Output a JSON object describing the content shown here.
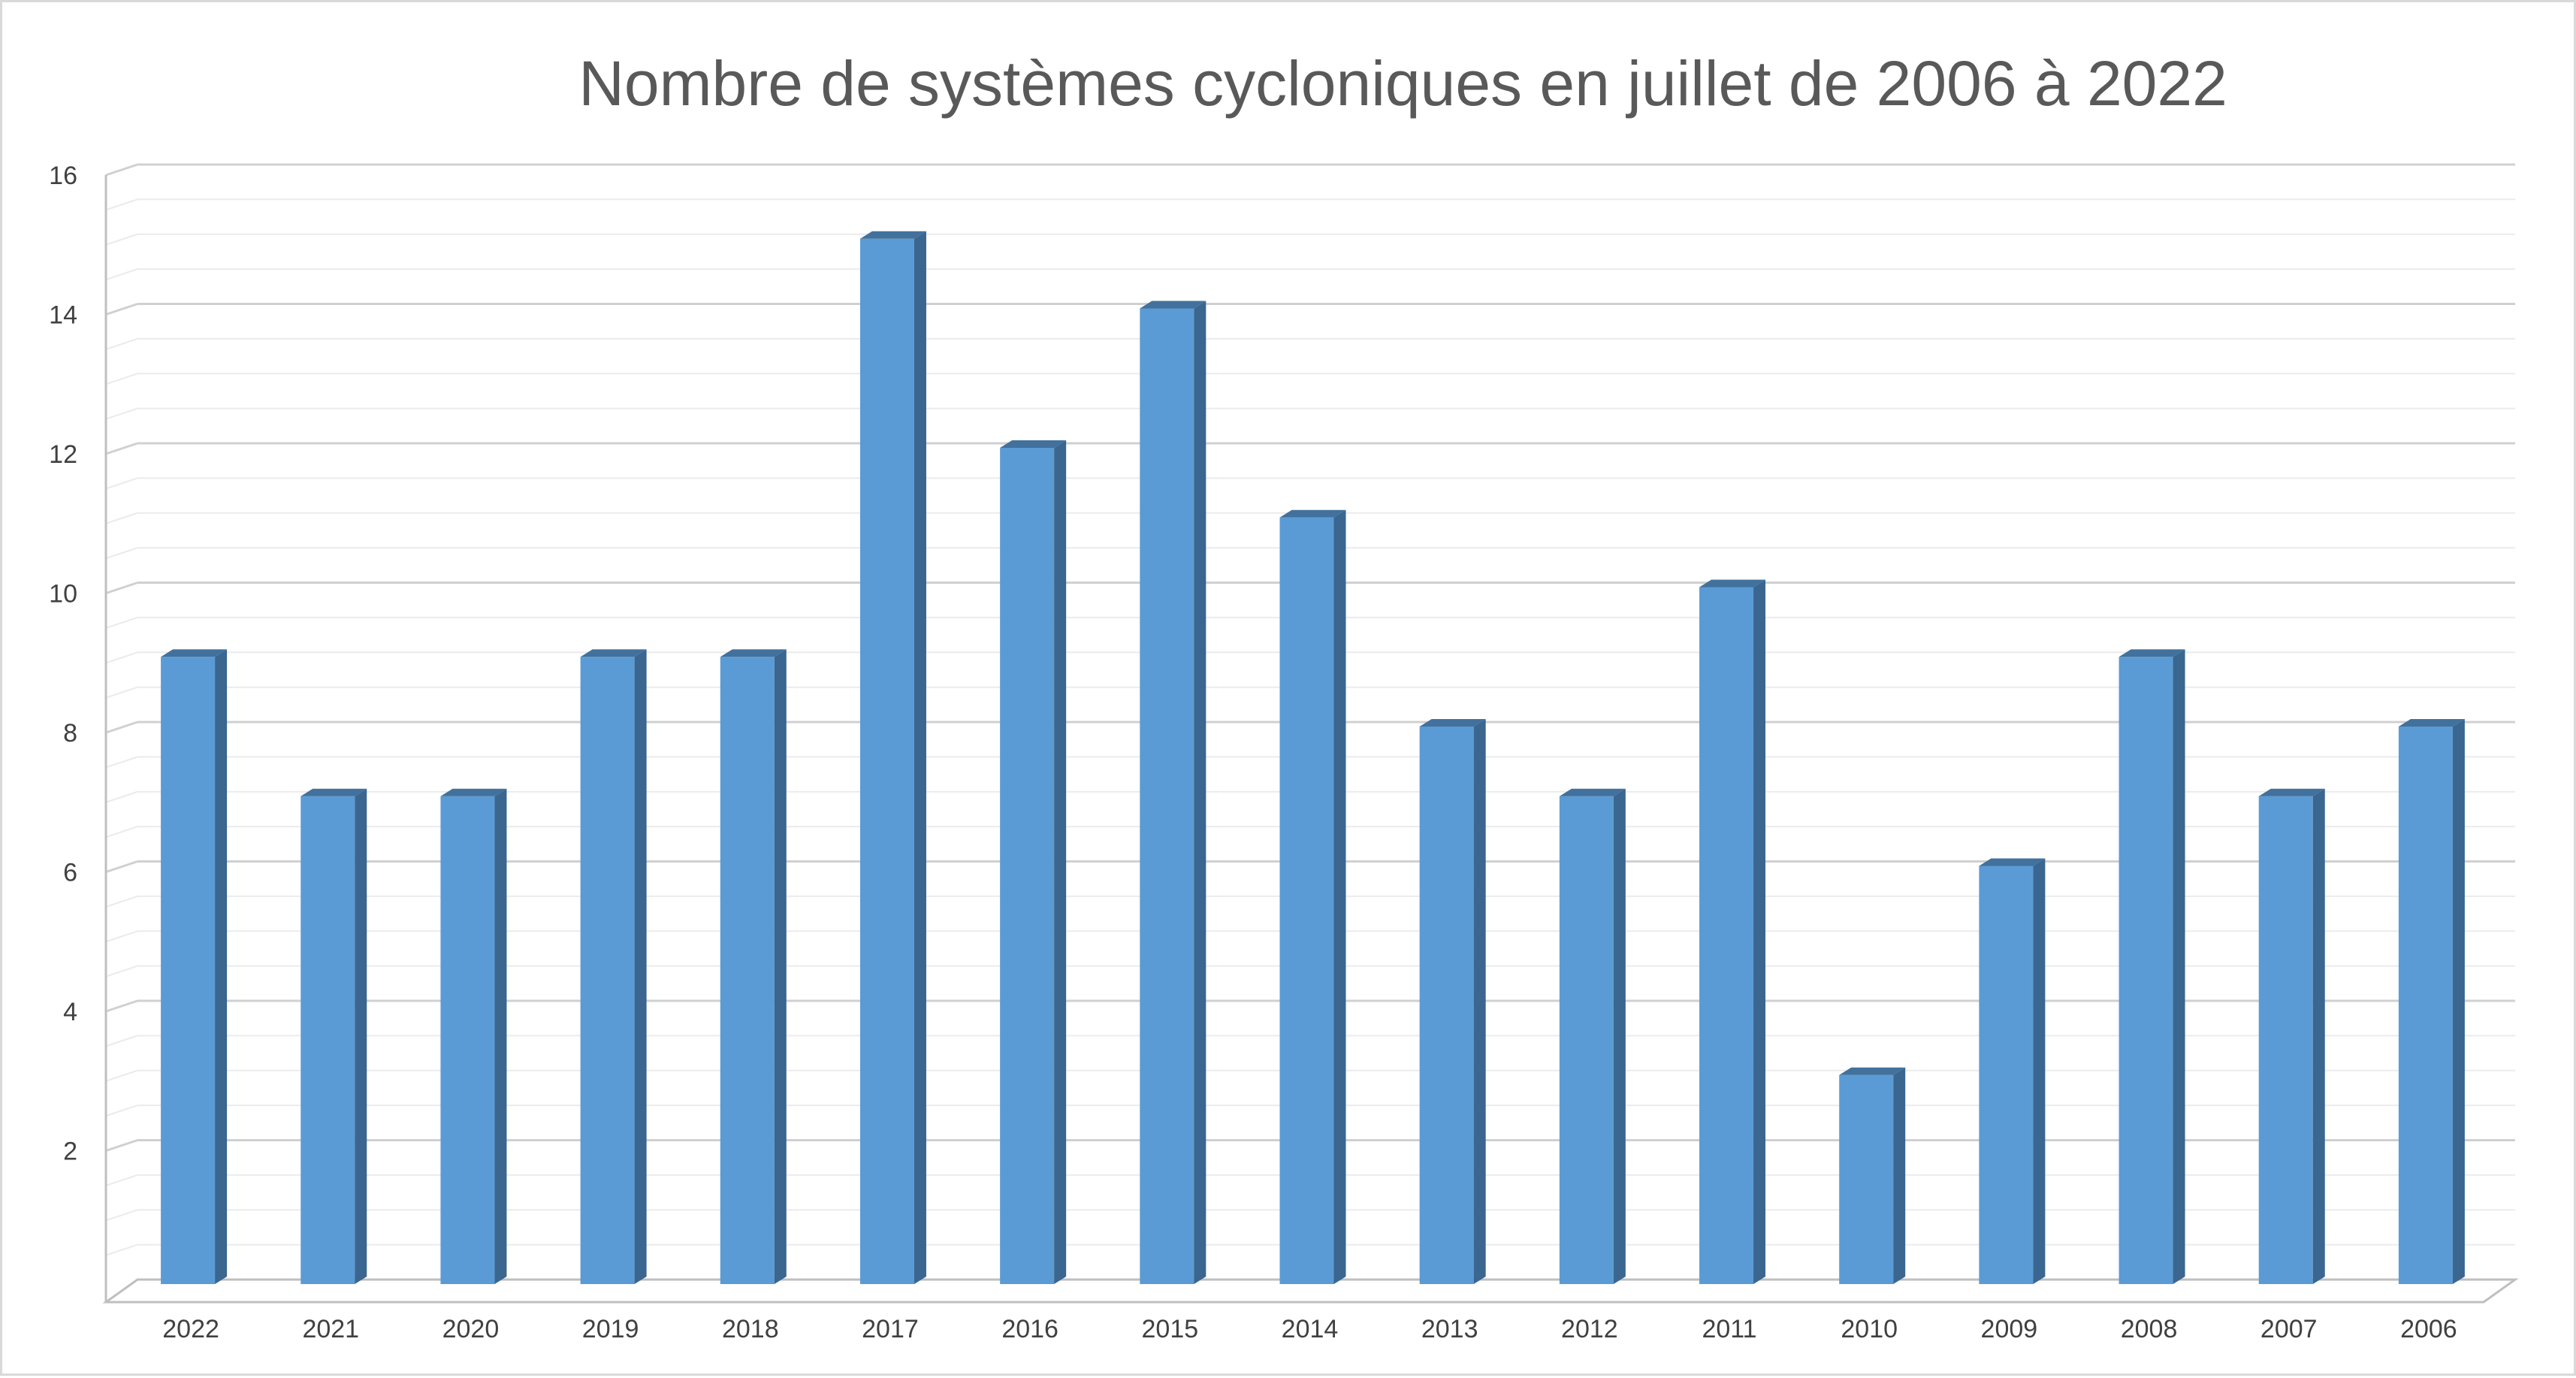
{
  "chart_data": {
    "type": "bar",
    "title": "Nombre de systèmes cycloniques en juillet de 2006 à 2022",
    "xlabel": "",
    "ylabel": "",
    "categories": [
      "2022",
      "2021",
      "2020",
      "2019",
      "2018",
      "2017",
      "2016",
      "2015",
      "2014",
      "2013",
      "2012",
      "2011",
      "2010",
      "2009",
      "2008",
      "2007",
      "2006"
    ],
    "series": [
      {
        "values": [
          9,
          7,
          7,
          9,
          9,
          15,
          12,
          14,
          11,
          8,
          7,
          10,
          3,
          6,
          9,
          7,
          8
        ]
      }
    ],
    "ylim": [
      0,
      16
    ],
    "yticks": [
      2,
      4,
      6,
      8,
      10,
      12,
      14,
      16
    ],
    "grid": true,
    "legend": "none",
    "colors": {
      "bar_front": "#5b9bd5",
      "bar_side": "#3a6690",
      "bar_top": "#41719c",
      "grid_major": "#d0d0d0",
      "grid_minor": "#ebebeb"
    }
  }
}
